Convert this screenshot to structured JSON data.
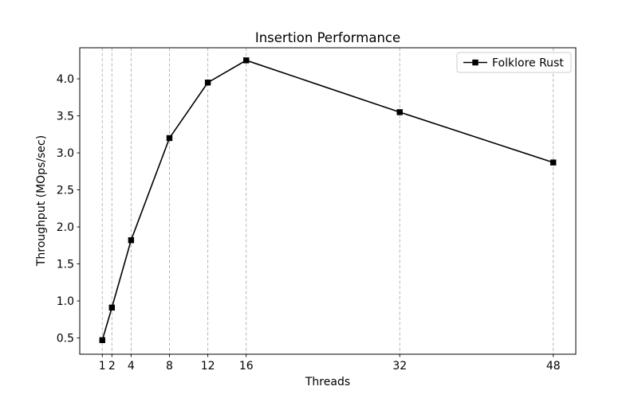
{
  "figure": {
    "background": "#ffffff"
  },
  "chart_data": {
    "type": "line",
    "title": "Insertion Performance",
    "xlabel": "Threads",
    "ylabel": "Throughput (MOps/sec)",
    "series": [
      {
        "name": "Folklore Rust",
        "x": [
          1,
          2,
          4,
          8,
          12,
          16,
          32,
          48
        ],
        "y": [
          0.47,
          0.91,
          1.82,
          3.2,
          3.95,
          4.25,
          3.55,
          2.87
        ],
        "color": "#000000",
        "marker": "square",
        "marker_size": 7.4,
        "line_width": 1.6
      }
    ],
    "xticks": [
      1,
      2,
      4,
      8,
      12,
      16,
      32,
      48
    ],
    "yticks": [
      "0.5",
      "1.0",
      "1.5",
      "2.0",
      "2.5",
      "3.0",
      "3.5",
      "4.0"
    ],
    "xlim": [
      -1.35,
      50.35
    ],
    "ylim": [
      0.28,
      4.42
    ],
    "grid": {
      "axis": "x",
      "style": "dashed",
      "color": "#b0b0b0"
    },
    "legend": {
      "position": "upper right",
      "entries": [
        "Folklore Rust"
      ]
    },
    "colors": {
      "axis": "#000000",
      "tick_label": "#000000",
      "legend_border": "#cccccc",
      "legend_background": "#ffffff"
    }
  }
}
